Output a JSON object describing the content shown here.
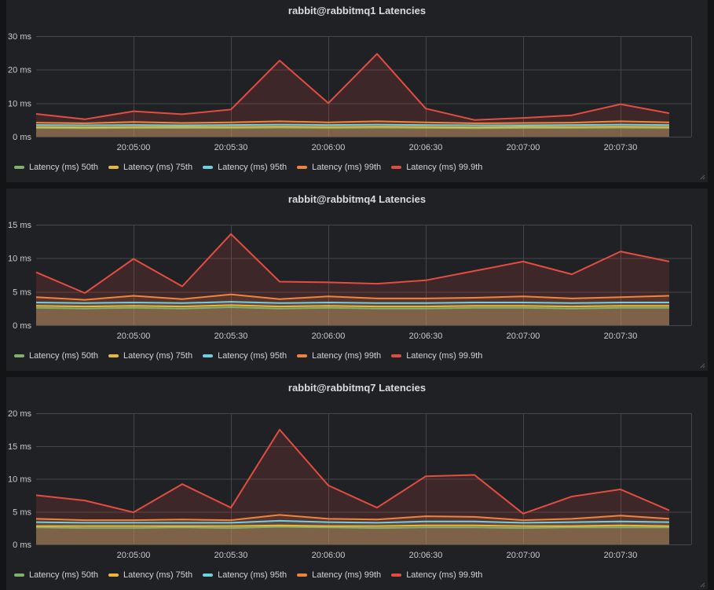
{
  "dashboard": {
    "background": "#131416",
    "panel_background": "#1f2124",
    "grid_color": "#444649"
  },
  "series_meta": [
    {
      "label": "Latency (ms) 50th",
      "color": "#7eb26d"
    },
    {
      "label": "Latency (ms) 75th",
      "color": "#eab839"
    },
    {
      "label": "Latency (ms) 95th",
      "color": "#6ed0e0"
    },
    {
      "label": "Latency (ms) 99th",
      "color": "#ef843c"
    },
    {
      "label": "Latency (ms) 99.9th",
      "color": "#e24d42"
    }
  ],
  "chart_data": [
    {
      "type": "area",
      "title": "rabbit@rabbitmq1 Latencies",
      "xlabel": "",
      "ylabel": "ms",
      "ylim": [
        0,
        30
      ],
      "grid": true,
      "legend_position": "bottom",
      "x": [
        "20:04:30",
        "20:04:45",
        "20:05:00",
        "20:05:15",
        "20:05:30",
        "20:05:45",
        "20:06:00",
        "20:06:15",
        "20:06:30",
        "20:06:45",
        "20:07:00",
        "20:07:15",
        "20:07:30",
        "20:07:45"
      ],
      "x_tick_labels": [
        "20:05:00",
        "20:05:30",
        "20:06:00",
        "20:06:30",
        "20:07:00",
        "20:07:30"
      ],
      "y_ticks_ms": [
        0,
        10,
        20,
        30
      ],
      "y_tick_labels": [
        "0 ms",
        "10 ms",
        "20 ms",
        "30 ms"
      ],
      "series": [
        {
          "name": "Latency (ms) 50th",
          "values": [
            2.6,
            2.5,
            2.6,
            2.6,
            2.6,
            2.7,
            2.6,
            2.7,
            2.6,
            2.5,
            2.6,
            2.6,
            2.7,
            2.6
          ]
        },
        {
          "name": "Latency (ms) 75th",
          "values": [
            2.9,
            2.8,
            2.9,
            2.9,
            2.9,
            3.0,
            2.9,
            3.0,
            2.9,
            2.8,
            2.9,
            2.9,
            3.0,
            2.9
          ]
        },
        {
          "name": "Latency (ms) 95th",
          "values": [
            3.5,
            3.4,
            3.5,
            3.4,
            3.5,
            3.6,
            3.5,
            3.6,
            3.5,
            3.4,
            3.4,
            3.5,
            3.6,
            3.5
          ]
        },
        {
          "name": "Latency (ms) 99th",
          "values": [
            4.2,
            4.0,
            4.4,
            4.1,
            4.3,
            4.6,
            4.3,
            4.6,
            4.3,
            4.0,
            4.1,
            4.2,
            4.6,
            4.3
          ]
        },
        {
          "name": "Latency (ms) 99.9th",
          "values": [
            6.8,
            5.2,
            7.6,
            6.7,
            8.1,
            22.7,
            10.0,
            24.7,
            8.4,
            5.0,
            5.6,
            6.4,
            9.7,
            7.0
          ]
        }
      ]
    },
    {
      "type": "area",
      "title": "rabbit@rabbitmq4 Latencies",
      "xlabel": "",
      "ylabel": "ms",
      "ylim": [
        0,
        15
      ],
      "grid": true,
      "legend_position": "bottom",
      "x": [
        "20:04:30",
        "20:04:45",
        "20:05:00",
        "20:05:15",
        "20:05:30",
        "20:05:45",
        "20:06:00",
        "20:06:15",
        "20:06:30",
        "20:06:45",
        "20:07:00",
        "20:07:15",
        "20:07:30",
        "20:07:45"
      ],
      "x_tick_labels": [
        "20:05:00",
        "20:05:30",
        "20:06:00",
        "20:06:30",
        "20:07:00",
        "20:07:30"
      ],
      "y_ticks_ms": [
        0,
        5,
        10,
        15
      ],
      "y_tick_labels": [
        "0 ms",
        "5 ms",
        "10 ms",
        "15 ms"
      ],
      "series": [
        {
          "name": "Latency (ms) 50th",
          "values": [
            2.6,
            2.5,
            2.6,
            2.5,
            2.7,
            2.5,
            2.6,
            2.5,
            2.5,
            2.6,
            2.6,
            2.5,
            2.6,
            2.6
          ]
        },
        {
          "name": "Latency (ms) 75th",
          "values": [
            2.9,
            2.8,
            2.9,
            2.8,
            3.0,
            2.8,
            2.9,
            2.8,
            2.8,
            2.9,
            2.9,
            2.8,
            2.9,
            2.9
          ]
        },
        {
          "name": "Latency (ms) 95th",
          "values": [
            3.4,
            3.3,
            3.4,
            3.3,
            3.5,
            3.3,
            3.4,
            3.3,
            3.3,
            3.4,
            3.4,
            3.3,
            3.4,
            3.4
          ]
        },
        {
          "name": "Latency (ms) 99th",
          "values": [
            4.2,
            3.8,
            4.4,
            3.9,
            4.6,
            3.9,
            4.3,
            4.0,
            4.0,
            4.1,
            4.3,
            4.0,
            4.2,
            4.4
          ]
        },
        {
          "name": "Latency (ms) 99.9th",
          "values": [
            7.9,
            4.8,
            9.9,
            5.8,
            13.6,
            6.5,
            6.4,
            6.2,
            6.7,
            8.1,
            9.5,
            7.6,
            11.0,
            9.5
          ]
        }
      ]
    },
    {
      "type": "area",
      "title": "rabbit@rabbitmq7 Latencies",
      "xlabel": "",
      "ylabel": "ms",
      "ylim": [
        0,
        20
      ],
      "grid": true,
      "legend_position": "bottom",
      "x": [
        "20:04:30",
        "20:04:45",
        "20:05:00",
        "20:05:15",
        "20:05:30",
        "20:05:45",
        "20:06:00",
        "20:06:15",
        "20:06:30",
        "20:06:45",
        "20:07:00",
        "20:07:15",
        "20:07:30",
        "20:07:45"
      ],
      "x_tick_labels": [
        "20:05:00",
        "20:05:30",
        "20:06:00",
        "20:06:30",
        "20:07:00",
        "20:07:30"
      ],
      "y_ticks_ms": [
        0,
        5,
        10,
        15,
        20
      ],
      "y_tick_labels": [
        "0 ms",
        "5 ms",
        "10 ms",
        "15 ms",
        "20 ms"
      ],
      "series": [
        {
          "name": "Latency (ms) 50th",
          "values": [
            2.6,
            2.5,
            2.5,
            2.6,
            2.5,
            2.7,
            2.6,
            2.5,
            2.6,
            2.6,
            2.5,
            2.6,
            2.6,
            2.6
          ]
        },
        {
          "name": "Latency (ms) 75th",
          "values": [
            2.8,
            2.8,
            2.8,
            2.8,
            2.8,
            2.9,
            2.8,
            2.8,
            2.9,
            2.9,
            2.8,
            2.8,
            2.9,
            2.8
          ]
        },
        {
          "name": "Latency (ms) 95th",
          "values": [
            3.4,
            3.3,
            3.3,
            3.3,
            3.3,
            3.6,
            3.4,
            3.3,
            3.5,
            3.5,
            3.3,
            3.4,
            3.5,
            3.4
          ]
        },
        {
          "name": "Latency (ms) 99th",
          "values": [
            3.9,
            3.7,
            3.7,
            3.8,
            3.7,
            4.5,
            3.9,
            3.8,
            4.3,
            4.2,
            3.7,
            3.9,
            4.4,
            3.9
          ]
        },
        {
          "name": "Latency (ms) 99.9th",
          "values": [
            7.5,
            6.7,
            4.9,
            9.2,
            5.6,
            17.5,
            9.0,
            5.6,
            10.4,
            10.6,
            4.7,
            7.3,
            8.4,
            5.2
          ]
        }
      ]
    }
  ]
}
